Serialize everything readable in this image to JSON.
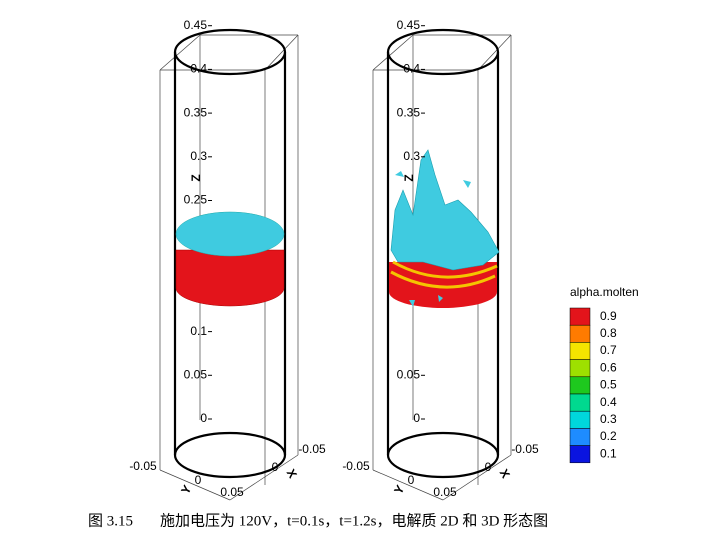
{
  "figure": {
    "panels": [
      {
        "z_label": "Z",
        "z_ticks": [
          "0.45",
          "0.4",
          "0.35",
          "0.3",
          "0.25",
          "0.1",
          "0.05",
          "0"
        ],
        "x_label": "X",
        "x_ticks": [
          "-0.05",
          "0"
        ],
        "y_label": "Y",
        "y_ticks": [
          "-0.05",
          "0",
          "0.05"
        ]
      },
      {
        "z_label": "Z",
        "z_ticks": [
          "0.45",
          "0.4",
          "0.35",
          "0.3",
          "0.05",
          "0"
        ],
        "x_label": "X",
        "x_ticks": [
          "-0.05",
          "0"
        ],
        "y_label": "Y",
        "y_ticks": [
          "-0.05",
          "0",
          "0.05"
        ]
      }
    ],
    "legend": {
      "title": "alpha.molten",
      "levels": [
        "0.9",
        "0.8",
        "0.7",
        "0.6",
        "0.5",
        "0.4",
        "0.3",
        "0.2",
        "0.1"
      ],
      "colors": [
        "#e3141b",
        "#ff7b00",
        "#f5e400",
        "#9ee000",
        "#1ec81e",
        "#00d98f",
        "#00d6dc",
        "#1e8cff",
        "#0a14e0"
      ]
    },
    "caption": {
      "number": "图 3.15",
      "text": "施加电压为 120V，t=0.1s，t=1.2s，电解质 2D 和 3D 形态图"
    }
  }
}
